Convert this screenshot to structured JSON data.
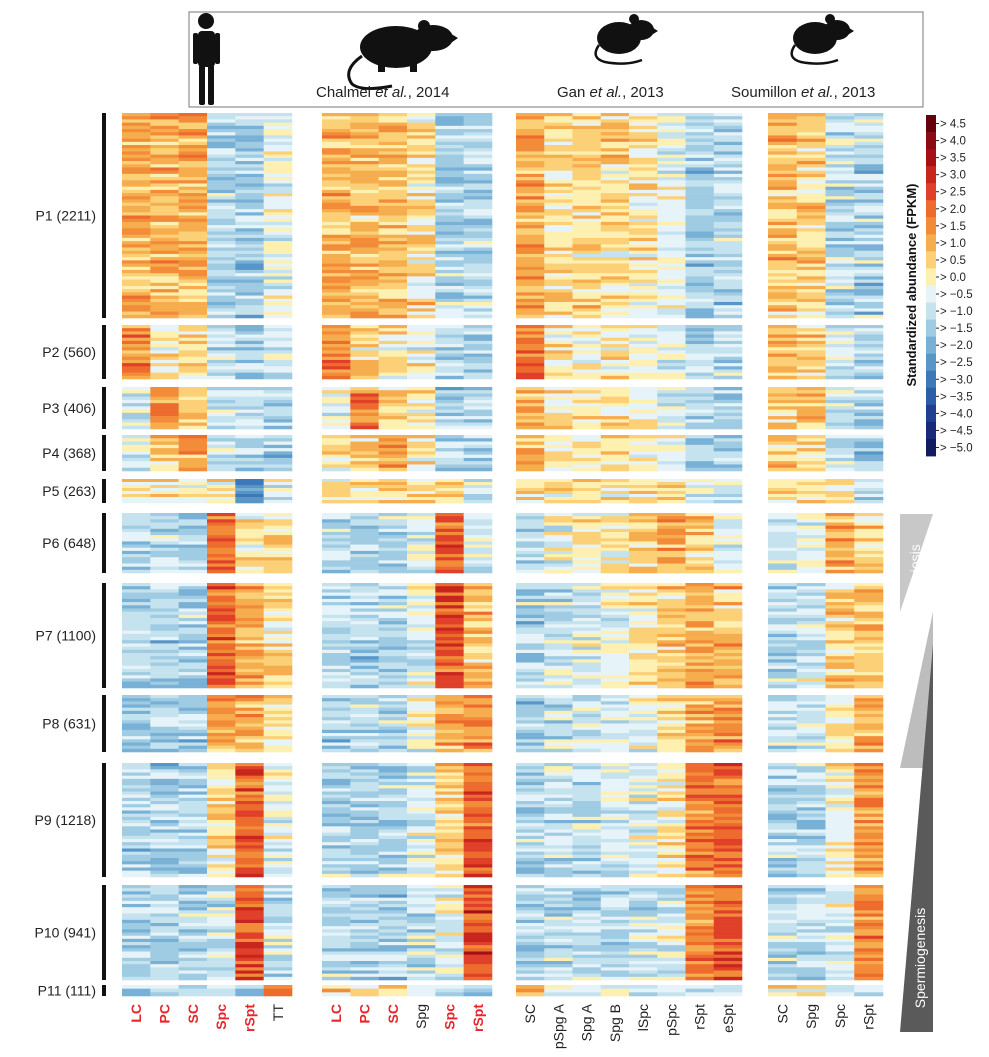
{
  "species_header": {
    "citations": [
      {
        "authors": "Chalmel ",
        "etal": "et al.",
        "year": ", 2014"
      },
      {
        "authors": "Gan ",
        "etal": "et al.",
        "year": ", 2013"
      },
      {
        "authors": "Soumillon ",
        "etal": "et al.",
        "year": ", 2013"
      }
    ],
    "icons": [
      "human-silhouette-icon",
      "rat-silhouette-icon",
      "mouse-silhouette-icon",
      "mouse-silhouette-icon"
    ]
  },
  "colorbar": {
    "title": "Standardized abundance (FPKM)",
    "labels": [
      "> 4.5",
      "> 4.0",
      "> 3.5",
      "> 3.0",
      "> 2.5",
      "> 2.0",
      "> 1.5",
      "> 1.0",
      "> 0.5",
      "> 0.0",
      "> −0.5",
      "> −1.0",
      "> −1.5",
      "> −2.0",
      "> −2.5",
      "> −3.0",
      "> −3.5",
      "> −4.0",
      "> −4.5",
      "> −5.0"
    ],
    "colors": [
      "#67000d",
      "#8b0a14",
      "#a50f15",
      "#c8251d",
      "#e0402a",
      "#ee6b2e",
      "#f28c38",
      "#f6ad4e",
      "#fbd077",
      "#fdf0b0",
      "#e6f3f8",
      "#c5e2ef",
      "#9fcbe3",
      "#79b1d6",
      "#5896c8",
      "#3d79b8",
      "#2c5ea8",
      "#213f92",
      "#1a2a7a",
      "#121c60"
    ]
  },
  "side_labels": {
    "meiosis": "Meiosis",
    "spermiogenesis": "Spermiogenesis"
  },
  "chart_data": {
    "type": "heatmap",
    "value_scale": "standardized abundance (FPKM)",
    "clusters": [
      {
        "label": "P1 (2211)",
        "genes": 2211
      },
      {
        "label": "P2 (560)",
        "genes": 560
      },
      {
        "label": "P3 (406)",
        "genes": 406
      },
      {
        "label": "P4 (368)",
        "genes": 368
      },
      {
        "label": "P5 (263)",
        "genes": 263
      },
      {
        "label": "P6 (648)",
        "genes": 648
      },
      {
        "label": "P7 (1100)",
        "genes": 1100
      },
      {
        "label": "P8 (631)",
        "genes": 631
      },
      {
        "label": "P9 (1218)",
        "genes": 1218
      },
      {
        "label": "P10 (941)",
        "genes": 941
      },
      {
        "label": "P11 (111)",
        "genes": 111
      }
    ],
    "panels": [
      {
        "name": "Human",
        "columns": [
          {
            "label": "LC",
            "highlight": true
          },
          {
            "label": "PC",
            "highlight": true
          },
          {
            "label": "SC",
            "highlight": true
          },
          {
            "label": "Spc",
            "highlight": true
          },
          {
            "label": "rSpt",
            "highlight": true
          },
          {
            "label": "TT",
            "highlight": false
          }
        ],
        "profiles": [
          [
            1.2,
            1.2,
            1.2,
            -1.0,
            -1.2,
            -0.2
          ],
          [
            1.8,
            0.3,
            0.3,
            -0.5,
            -1.0,
            -0.4
          ],
          [
            -0.6,
            1.8,
            0.8,
            -1.0,
            -1.0,
            -1.0
          ],
          [
            -0.6,
            0.6,
            1.6,
            -1.0,
            -1.0,
            -1.0
          ],
          [
            0.6,
            0.6,
            0.2,
            0.6,
            -2.2,
            -0.3
          ],
          [
            -1.0,
            -1.0,
            -1.0,
            2.2,
            0.2,
            0.6
          ],
          [
            -1.0,
            -1.0,
            -1.0,
            2.3,
            1.2,
            0.3
          ],
          [
            -1.0,
            -1.0,
            -1.0,
            1.3,
            1.3,
            0.4
          ],
          [
            -1.0,
            -1.0,
            -1.0,
            0.4,
            2.3,
            -0.4
          ],
          [
            -1.0,
            -1.0,
            -1.0,
            -0.5,
            2.6,
            -0.6
          ],
          [
            -0.8,
            -0.8,
            -0.8,
            -1.0,
            -1.0,
            2.2
          ]
        ]
      },
      {
        "name": "Rat",
        "columns": [
          {
            "label": "LC",
            "highlight": true
          },
          {
            "label": "PC",
            "highlight": true
          },
          {
            "label": "SC",
            "highlight": true
          },
          {
            "label": "Spg",
            "highlight": false
          },
          {
            "label": "Spc",
            "highlight": true
          },
          {
            "label": "rSpt",
            "highlight": true
          }
        ],
        "profiles": [
          [
            1.0,
            1.0,
            1.0,
            0.4,
            -1.0,
            -1.0
          ],
          [
            1.8,
            0.4,
            0.3,
            0.0,
            -1.0,
            -1.0
          ],
          [
            -0.4,
            1.8,
            0.6,
            0.2,
            -1.0,
            -1.0
          ],
          [
            0.2,
            0.6,
            1.4,
            0.3,
            -1.0,
            -1.0
          ],
          [
            0.3,
            0.3,
            0.3,
            0.4,
            0.3,
            -0.6
          ],
          [
            -1.0,
            -1.0,
            -1.0,
            -0.5,
            2.3,
            -0.4
          ],
          [
            -1.0,
            -1.0,
            -1.0,
            -0.5,
            2.3,
            0.9
          ],
          [
            -1.0,
            -1.0,
            -1.0,
            0.0,
            1.3,
            1.7
          ],
          [
            -1.0,
            -1.0,
            -1.0,
            -0.4,
            0.6,
            2.4
          ],
          [
            -1.0,
            -1.0,
            -1.0,
            -0.8,
            -0.4,
            2.6
          ],
          [
            0.8,
            0.4,
            0.6,
            -0.4,
            -1.0,
            -1.0
          ]
        ]
      },
      {
        "name": "Mouse (Gan)",
        "columns": [
          {
            "label": "SC",
            "highlight": false
          },
          {
            "label": "pSpg A",
            "highlight": false
          },
          {
            "label": "Spg A",
            "highlight": false
          },
          {
            "label": "Spg B",
            "highlight": false
          },
          {
            "label": "lSpc",
            "highlight": false
          },
          {
            "label": "pSpc",
            "highlight": false
          },
          {
            "label": "rSpt",
            "highlight": false
          },
          {
            "label": "eSpt",
            "highlight": false
          }
        ],
        "profiles": [
          [
            1.3,
            0.5,
            0.6,
            0.6,
            0.3,
            -0.3,
            -1.0,
            -1.0
          ],
          [
            1.8,
            0.2,
            0.2,
            0.2,
            -0.2,
            -0.4,
            -1.0,
            -1.0
          ],
          [
            1.2,
            0.3,
            0.4,
            0.4,
            0.2,
            -0.3,
            -1.0,
            -1.0
          ],
          [
            1.0,
            0.3,
            0.4,
            0.5,
            0.3,
            -0.2,
            -1.0,
            -1.0
          ],
          [
            0.6,
            0.2,
            0.3,
            0.3,
            0.4,
            0.4,
            -0.6,
            -0.8
          ],
          [
            -0.8,
            -0.2,
            0.0,
            0.4,
            0.6,
            1.4,
            0.8,
            -0.3
          ],
          [
            -1.0,
            -0.6,
            -0.4,
            -0.2,
            0.2,
            0.8,
            1.3,
            0.9
          ],
          [
            -1.0,
            -0.6,
            -0.5,
            -0.4,
            -0.2,
            0.5,
            1.4,
            1.6
          ],
          [
            -1.0,
            -0.8,
            -0.7,
            -0.6,
            -0.5,
            0.2,
            1.9,
            2.1
          ],
          [
            -1.0,
            -0.8,
            -0.8,
            -0.8,
            -0.7,
            -0.4,
            1.7,
            2.5
          ],
          [
            1.6,
            0.2,
            -0.3,
            -0.3,
            -0.5,
            -0.6,
            -0.8,
            -0.8
          ]
        ]
      },
      {
        "name": "Mouse (Soumillon)",
        "columns": [
          {
            "label": "SC",
            "highlight": false
          },
          {
            "label": "Spg",
            "highlight": false
          },
          {
            "label": "Spc",
            "highlight": false
          },
          {
            "label": "rSpt",
            "highlight": false
          }
        ],
        "profiles": [
          [
            1.0,
            0.6,
            -0.8,
            -1.0
          ],
          [
            0.9,
            0.5,
            -0.6,
            -0.9
          ],
          [
            0.6,
            1.0,
            -0.6,
            -1.0
          ],
          [
            0.8,
            0.8,
            -0.6,
            -1.0
          ],
          [
            0.4,
            0.6,
            0.0,
            -0.6
          ],
          [
            -0.8,
            -0.2,
            1.2,
            0.6
          ],
          [
            -0.8,
            -0.4,
            0.9,
            1.0
          ],
          [
            -0.8,
            -0.6,
            0.4,
            1.2
          ],
          [
            -0.8,
            -0.8,
            0.2,
            1.6
          ],
          [
            -0.8,
            -0.8,
            -0.4,
            1.8
          ],
          [
            0.5,
            0.3,
            -0.6,
            -0.6
          ]
        ]
      }
    ]
  }
}
